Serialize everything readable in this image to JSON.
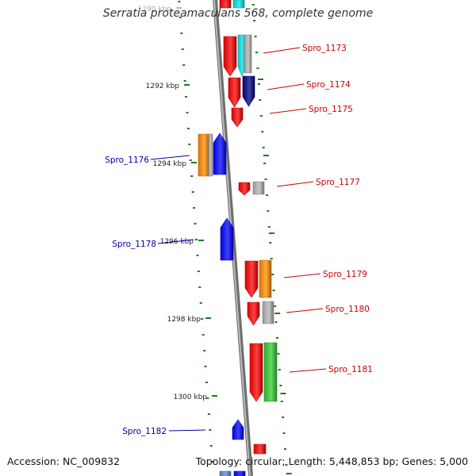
{
  "title": "Serratia proteamaculans 568, complete genome",
  "footer": {
    "accession": "Accession: NC_009832",
    "summary": "Topology: circular; Length: 5,448,853 bp; Genes: 5,000"
  },
  "ruler": {
    "labels": [
      "1290 kbp",
      "1292 kbp",
      "1294 kbp",
      "1296 kbp",
      "1298 kbp",
      "1300 kbp"
    ]
  },
  "gene_labels": [
    {
      "text": "Spro_1173",
      "strand": "plus"
    },
    {
      "text": "Spro_1174",
      "strand": "plus"
    },
    {
      "text": "Spro_1175",
      "strand": "plus"
    },
    {
      "text": "Spro_1176",
      "strand": "minus"
    },
    {
      "text": "Spro_1177",
      "strand": "plus"
    },
    {
      "text": "Spro_1178",
      "strand": "minus"
    },
    {
      "text": "Spro_1179",
      "strand": "plus"
    },
    {
      "text": "Spro_1180",
      "strand": "plus"
    },
    {
      "text": "Spro_1181",
      "strand": "plus"
    },
    {
      "text": "Spro_1182",
      "strand": "minus"
    }
  ],
  "colors": {
    "plus_label": "#cc0000",
    "minus_label": "#0000aa",
    "backbone": "#8c8c8c",
    "tick": "#1a7a1a",
    "red": "#ff0000",
    "cyan": "#00e5e5",
    "gray": "#b4b4b4",
    "navy": "#000080",
    "orange": "#ff8c00",
    "blue": "#0000ff",
    "green": "#33cc33",
    "steel": "#5b8fd0"
  }
}
